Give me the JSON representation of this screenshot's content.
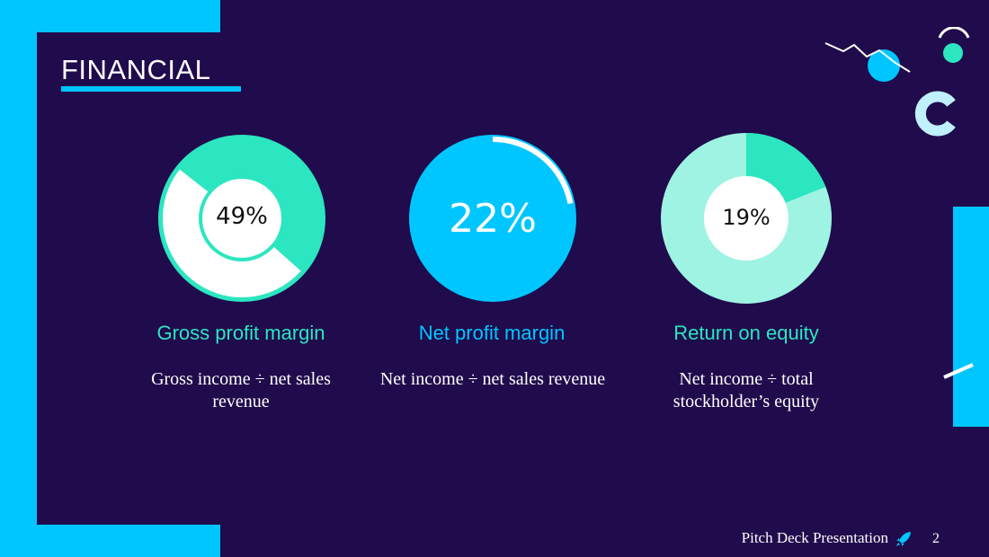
{
  "slide": {
    "title": "FINANCIAL",
    "footer_text": "Pitch Deck Presentation",
    "page_number": "2"
  },
  "colors": {
    "background": "#200b4c",
    "accent_blue": "#00c6ff",
    "accent_teal": "#2be6c0",
    "light_teal": "#9ef3e2",
    "white": "#ffffff"
  },
  "icons": {
    "footer_icon": "rocket-icon"
  },
  "chart_data": [
    {
      "type": "pie",
      "percent_label": "49%",
      "value": 49,
      "title": "Gross profit margin",
      "description": "Gross income ÷ net sales revenue"
    },
    {
      "type": "pie",
      "percent_label": "22%",
      "value": 22,
      "title": "Net profit margin",
      "description": "Net income ÷ net sales revenue"
    },
    {
      "type": "pie",
      "percent_label": "19%",
      "value": 19,
      "title": "Return on equity",
      "description": "Net income ÷ total stockholder’s equity"
    }
  ]
}
